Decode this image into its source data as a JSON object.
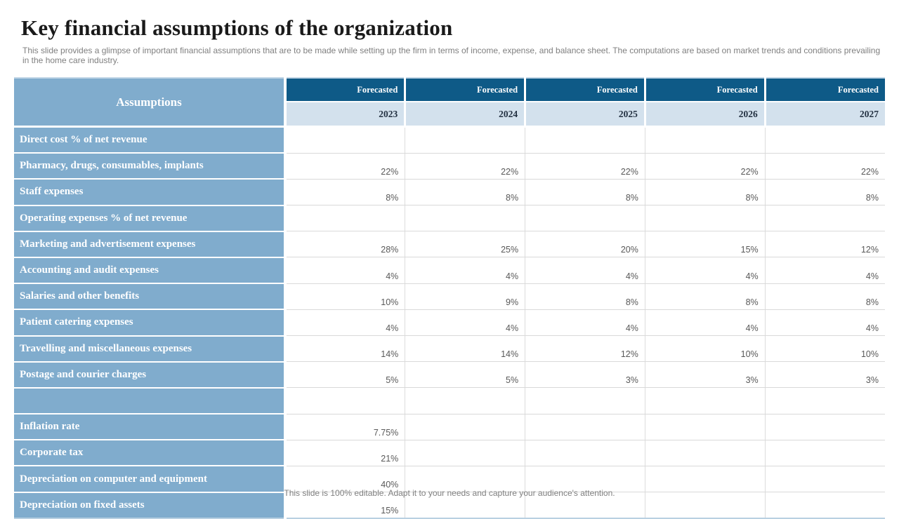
{
  "slide": {
    "title": "Key financial assumptions of the organization",
    "subtitle": "This slide provides a glimpse of important financial assumptions that are to be made while setting up the firm in terms of income, expense, and balance sheet. The computations are based on market trends and conditions prevailing in the home care industry.",
    "footer": "This slide is 100% editable. Adapt it to your needs and capture your audience's attention."
  },
  "colors": {
    "header_dark_blue": "#0e5a87",
    "label_blue": "#80accd",
    "year_band_blue": "#d3e1ed",
    "grid_line": "#d9d9d9",
    "table_edge_blue": "#b9d0e2",
    "value_text": "#595959",
    "muted_text": "#7f7f7f"
  },
  "table": {
    "header": {
      "assumptions_label": "Assumptions",
      "forecast_label": "Forecasted",
      "years": [
        "2023",
        "2024",
        "2025",
        "2026",
        "2027"
      ]
    },
    "rows": [
      {
        "label": "Direct cost % of net revenue",
        "values": [
          "",
          "",
          "",
          "",
          ""
        ]
      },
      {
        "label": "Pharmacy, drugs, consumables, implants",
        "values": [
          "22%",
          "22%",
          "22%",
          "22%",
          "22%"
        ]
      },
      {
        "label": "Staff expenses",
        "values": [
          "8%",
          "8%",
          "8%",
          "8%",
          "8%"
        ]
      },
      {
        "label": "Operating expenses % of net revenue",
        "values": [
          "",
          "",
          "",
          "",
          ""
        ]
      },
      {
        "label": "Marketing and advertisement expenses",
        "values": [
          "28%",
          "25%",
          "20%",
          "15%",
          "12%"
        ]
      },
      {
        "label": "Accounting and audit expenses",
        "values": [
          "4%",
          "4%",
          "4%",
          "4%",
          "4%"
        ]
      },
      {
        "label": "Salaries and other benefits",
        "values": [
          "10%",
          "9%",
          "8%",
          "8%",
          "8%"
        ]
      },
      {
        "label": "Patient catering expenses",
        "values": [
          "4%",
          "4%",
          "4%",
          "4%",
          "4%"
        ]
      },
      {
        "label": "Travelling and miscellaneous expenses",
        "values": [
          "14%",
          "14%",
          "12%",
          "10%",
          "10%"
        ]
      },
      {
        "label": "Postage and courier charges",
        "values": [
          "5%",
          "5%",
          "3%",
          "3%",
          "3%"
        ]
      },
      {
        "label": "",
        "values": [
          "",
          "",
          "",
          "",
          ""
        ]
      },
      {
        "label": "Inflation rate",
        "values": [
          "7.75%",
          "",
          "",
          "",
          ""
        ]
      },
      {
        "label": "Corporate tax",
        "values": [
          "21%",
          "",
          "",
          "",
          ""
        ]
      },
      {
        "label": "Depreciation on computer and equipment",
        "values": [
          "40%",
          "",
          "",
          "",
          ""
        ]
      },
      {
        "label": "Depreciation on fixed assets",
        "values": [
          "15%",
          "",
          "",
          "",
          ""
        ]
      }
    ]
  }
}
